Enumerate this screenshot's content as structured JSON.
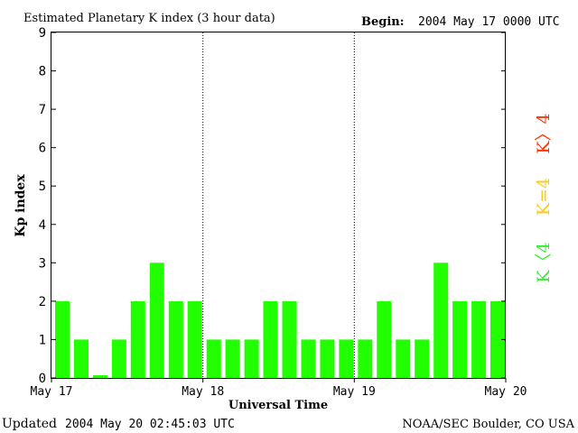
{
  "header": {
    "title": "Estimated Planetary K index (3 hour data)",
    "begin_label": "Begin:",
    "begin_value": "2004 May 17 0000 UTC"
  },
  "footer": {
    "updated_label": "Updated",
    "updated_value": "2004 May 20 02:45:03 UTC",
    "source": "NOAA/SEC Boulder, CO USA"
  },
  "legend": {
    "high": {
      "label": "K〉4",
      "color": "#ff3300"
    },
    "equal": {
      "label": "K=4",
      "color": "#ffcc00"
    },
    "low": {
      "label": "K〈4",
      "color": "#33ee33"
    }
  },
  "chart_data": {
    "type": "bar",
    "title": "Estimated Planetary K index (3 hour data)",
    "xlabel": "Universal Time",
    "ylabel": "Kp index",
    "ylim": [
      0,
      9
    ],
    "yticks": [
      "0",
      "1",
      "2",
      "3",
      "4",
      "5",
      "6",
      "7",
      "8",
      "9"
    ],
    "xticks": [
      "May 17",
      "May 18",
      "May 19",
      "May 20"
    ],
    "day_dividers": [
      "May 18",
      "May 19"
    ],
    "bar_color": "#22ff00",
    "values": [
      2,
      1,
      0.07,
      1,
      2,
      3,
      2,
      2,
      1,
      1,
      1,
      2,
      2,
      1,
      1,
      1,
      1,
      2,
      1,
      1,
      3,
      2,
      2,
      2
    ]
  }
}
